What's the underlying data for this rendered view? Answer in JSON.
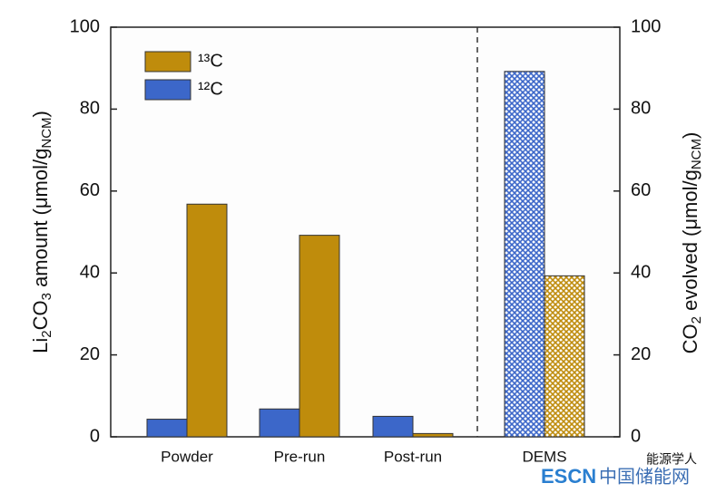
{
  "chart_data": [
    {
      "type": "bar",
      "categories": [
        "Powder",
        "Pre-run",
        "Post-run"
      ],
      "series": [
        {
          "name": "¹²C",
          "color": "#3c67c9",
          "values": [
            4.3,
            6.8,
            5.0
          ]
        },
        {
          "name": "¹³C",
          "color": "#bf8c0c",
          "values": [
            56.8,
            49.2,
            0.8
          ]
        }
      ],
      "ylim": [
        0,
        100
      ],
      "yticks": [
        0,
        20,
        40,
        60,
        80,
        100
      ],
      "ylabel": [
        "Li",
        "2",
        "CO",
        "3",
        " amount (μmol/g",
        "NCM",
        ")"
      ],
      "legend": "upper left"
    },
    {
      "type": "bar",
      "categories": [
        "DEMS"
      ],
      "series": [
        {
          "color": "#3c67c9",
          "values": [
            89.2
          ],
          "hatch": true,
          "axis": "y2"
        },
        {
          "color": "#bf8c0c",
          "values": [
            39.3
          ],
          "hatch": true,
          "axis": "y2"
        }
      ],
      "y2lim": [
        0,
        100
      ],
      "y2ticks": [
        0,
        20,
        40,
        60,
        80,
        100
      ],
      "y2label": [
        "CO",
        "2",
        " evolved (μmol/g",
        "NCM",
        ")"
      ]
    }
  ],
  "watermark": {
    "source": "能源学人",
    "site": [
      "ESCN",
      "中国储能网"
    ]
  }
}
